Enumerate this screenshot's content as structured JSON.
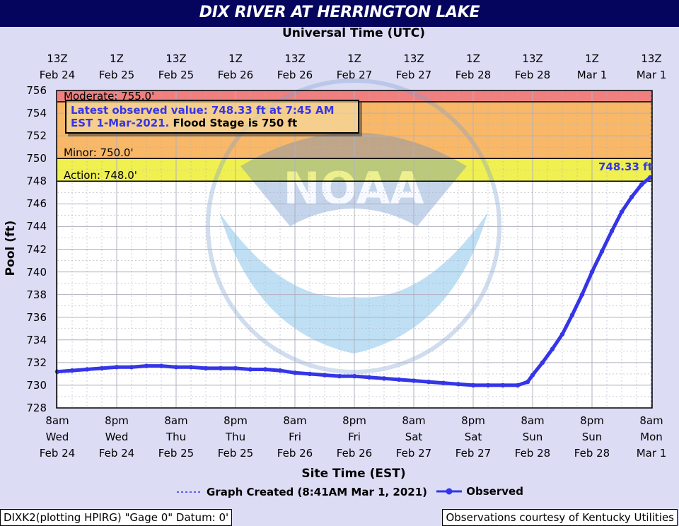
{
  "title": "DIX RIVER AT HERRINGTON LAKE",
  "top_axis_title": "Universal Time (UTC)",
  "bottom_axis_title": "Site Time (EST)",
  "y_axis_label": "Pool (ft)",
  "annotation": {
    "line1": "Latest observed value: 748.33 ft at 7:45 AM",
    "line2_blue": "EST 1-Mar-2021.",
    "line2_black": " Flood Stage is 750 ft"
  },
  "legend": {
    "graph_created": "Graph Created (8:41AM Mar 1, 2021)",
    "observed": "Observed"
  },
  "footer": {
    "left": "DIXK2(plotting HPIRG) \"Gage 0\" Datum: 0'",
    "right": "Observations courtesy of Kentucky Utilities"
  },
  "colors": {
    "title_bar": "#05055e",
    "observed": "#3535e8",
    "moderate_band": "#f08080",
    "minor_band": "#f8b868",
    "action_band": "#f0f050",
    "plot_bg": "#ffffff"
  },
  "watermark_text": "NOAA",
  "chart_data": {
    "type": "line",
    "ylabel": "Pool (ft)",
    "xlabel": "Site Time (EST)",
    "ylim": [
      728,
      756
    ],
    "xlim_hours": [
      0,
      120
    ],
    "yticks": [
      728,
      730,
      732,
      734,
      736,
      738,
      740,
      742,
      744,
      746,
      748,
      750,
      752,
      754,
      756
    ],
    "top_ticks": [
      {
        "h": 0,
        "l1": "13Z",
        "l2": "Feb 24"
      },
      {
        "h": 12,
        "l1": "1Z",
        "l2": "Feb 25"
      },
      {
        "h": 24,
        "l1": "13Z",
        "l2": "Feb 25"
      },
      {
        "h": 36,
        "l1": "1Z",
        "l2": "Feb 26"
      },
      {
        "h": 48,
        "l1": "13Z",
        "l2": "Feb 26"
      },
      {
        "h": 60,
        "l1": "1Z",
        "l2": "Feb 27"
      },
      {
        "h": 72,
        "l1": "13Z",
        "l2": "Feb 27"
      },
      {
        "h": 84,
        "l1": "1Z",
        "l2": "Feb 28"
      },
      {
        "h": 96,
        "l1": "13Z",
        "l2": "Feb 28"
      },
      {
        "h": 108,
        "l1": "1Z",
        "l2": "Mar  1"
      },
      {
        "h": 120,
        "l1": "13Z",
        "l2": "Mar  1"
      }
    ],
    "bottom_ticks": [
      {
        "h": 0,
        "l1": "8am",
        "l2": "Wed",
        "l3": "Feb 24"
      },
      {
        "h": 12,
        "l1": "8pm",
        "l2": "Wed",
        "l3": "Feb 24"
      },
      {
        "h": 24,
        "l1": "8am",
        "l2": "Thu",
        "l3": "Feb 25"
      },
      {
        "h": 36,
        "l1": "8pm",
        "l2": "Thu",
        "l3": "Feb 25"
      },
      {
        "h": 48,
        "l1": "8am",
        "l2": "Fri",
        "l3": "Feb 26"
      },
      {
        "h": 60,
        "l1": "8pm",
        "l2": "Fri",
        "l3": "Feb 26"
      },
      {
        "h": 72,
        "l1": "8am",
        "l2": "Sat",
        "l3": "Feb 27"
      },
      {
        "h": 84,
        "l1": "8pm",
        "l2": "Sat",
        "l3": "Feb 27"
      },
      {
        "h": 96,
        "l1": "8am",
        "l2": "Sun",
        "l3": "Feb 28"
      },
      {
        "h": 108,
        "l1": "8pm",
        "l2": "Sun",
        "l3": "Feb 28"
      },
      {
        "h": 120,
        "l1": "8am",
        "l2": "Mon",
        "l3": "Mar 1"
      }
    ],
    "stages": [
      {
        "name": "Moderate",
        "label": "Moderate: 755.0'",
        "value": 755.0
      },
      {
        "name": "Minor",
        "label": "Minor: 750.0'",
        "value": 750.0
      },
      {
        "name": "Action",
        "label": "Action: 748.0'",
        "value": 748.0
      }
    ],
    "series": [
      {
        "name": "Observed",
        "latest_label": "748.33 ft",
        "x": [
          0,
          3,
          6,
          9,
          12,
          15,
          18,
          21,
          24,
          27,
          30,
          33,
          36,
          39,
          42,
          45,
          48,
          51,
          54,
          57,
          60,
          63,
          66,
          69,
          72,
          75,
          78,
          81,
          84,
          87,
          90,
          93,
          95,
          96,
          98,
          100,
          102,
          104,
          106,
          108,
          110,
          112,
          114,
          116,
          118,
          119.75
        ],
        "y": [
          731.2,
          731.3,
          731.4,
          731.5,
          731.6,
          731.6,
          731.7,
          731.7,
          731.6,
          731.6,
          731.5,
          731.5,
          731.5,
          731.4,
          731.4,
          731.3,
          731.1,
          731.0,
          730.9,
          730.8,
          730.8,
          730.7,
          730.6,
          730.5,
          730.4,
          730.3,
          730.2,
          730.1,
          730.0,
          730.0,
          730.0,
          730.0,
          730.3,
          730.9,
          732.0,
          733.2,
          734.5,
          736.2,
          738.0,
          740.0,
          741.8,
          743.6,
          745.3,
          746.6,
          747.7,
          748.33
        ]
      }
    ]
  }
}
